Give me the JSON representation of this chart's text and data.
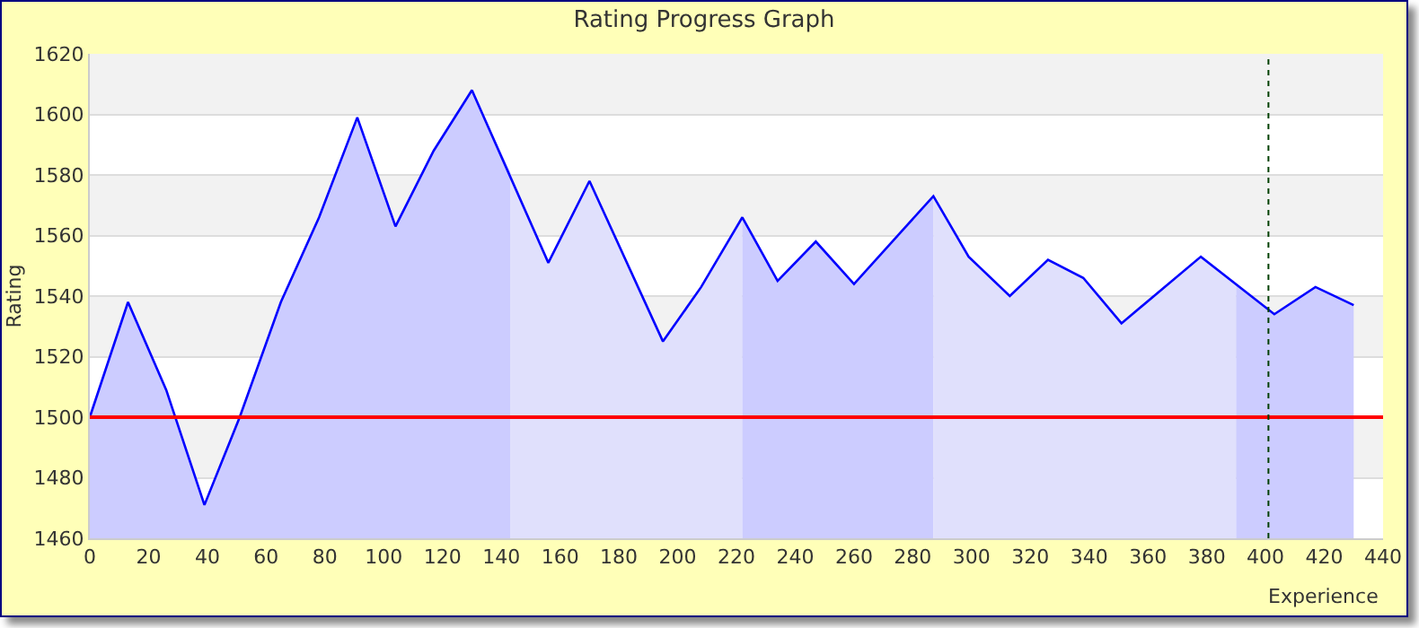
{
  "chart_data": {
    "type": "area",
    "title": "Rating Progress Graph",
    "xlabel": "Experience",
    "ylabel": "Rating",
    "xlim": [
      0,
      440
    ],
    "xticks": [
      0,
      20,
      40,
      60,
      80,
      100,
      120,
      140,
      160,
      180,
      200,
      220,
      240,
      260,
      280,
      300,
      320,
      340,
      360,
      380,
      400,
      420,
      440
    ],
    "ylim": [
      1460,
      1620
    ],
    "yticks": [
      1460,
      1480,
      1500,
      1520,
      1540,
      1560,
      1580,
      1600,
      1620
    ],
    "grid": "y",
    "marker": "none",
    "series": [
      {
        "color": "#ccccff",
        "x": [
          0,
          13,
          26,
          39,
          51,
          65,
          78,
          91,
          104,
          117,
          130,
          143
        ],
        "values": [
          1500,
          1538,
          1509,
          1471,
          1500,
          1538,
          1566,
          1599,
          1563,
          1588,
          1608,
          1581
        ]
      },
      {
        "color": "#e0e0fc",
        "x": [
          143,
          156,
          170,
          195,
          208,
          222
        ],
        "values": [
          1581,
          1551,
          1578,
          1525,
          1543,
          1566
        ]
      },
      {
        "color": "#ccccff",
        "x": [
          222,
          234,
          247,
          260,
          287
        ],
        "values": [
          1566,
          1545,
          1558,
          1544,
          1573
        ]
      },
      {
        "color": "#e0e0fc",
        "x": [
          287,
          299,
          313,
          326,
          338,
          351,
          378,
          390
        ],
        "values": [
          1573,
          1553,
          1540,
          1552,
          1546,
          1531,
          1553,
          1544
        ]
      },
      {
        "color": "#ccccff",
        "x": [
          390,
          403,
          417,
          430
        ],
        "values": [
          1544,
          1534,
          1543,
          1537
        ]
      },
      {
        "type": "line",
        "color": "#0000ff",
        "x": [
          0,
          13,
          26,
          39,
          51,
          65,
          78,
          91,
          104,
          117,
          130,
          156,
          170,
          195,
          208,
          222,
          234,
          247,
          260,
          287,
          299,
          313,
          326,
          338,
          351,
          378,
          403,
          417,
          430
        ],
        "values": [
          1500,
          1538,
          1509,
          1471,
          1500,
          1538,
          1566,
          1599,
          1563,
          1588,
          1608,
          1551,
          1578,
          1525,
          1543,
          1566,
          1545,
          1558,
          1544,
          1573,
          1553,
          1540,
          1552,
          1546,
          1531,
          1553,
          1534,
          1543,
          1537
        ]
      }
    ],
    "ref_lines": [
      {
        "axis": "y",
        "value": 1500,
        "color": "#ff0000",
        "line_style": "solid"
      },
      {
        "axis": "x",
        "value": 401,
        "color": "#004000",
        "line_style": "dotted"
      }
    ]
  }
}
